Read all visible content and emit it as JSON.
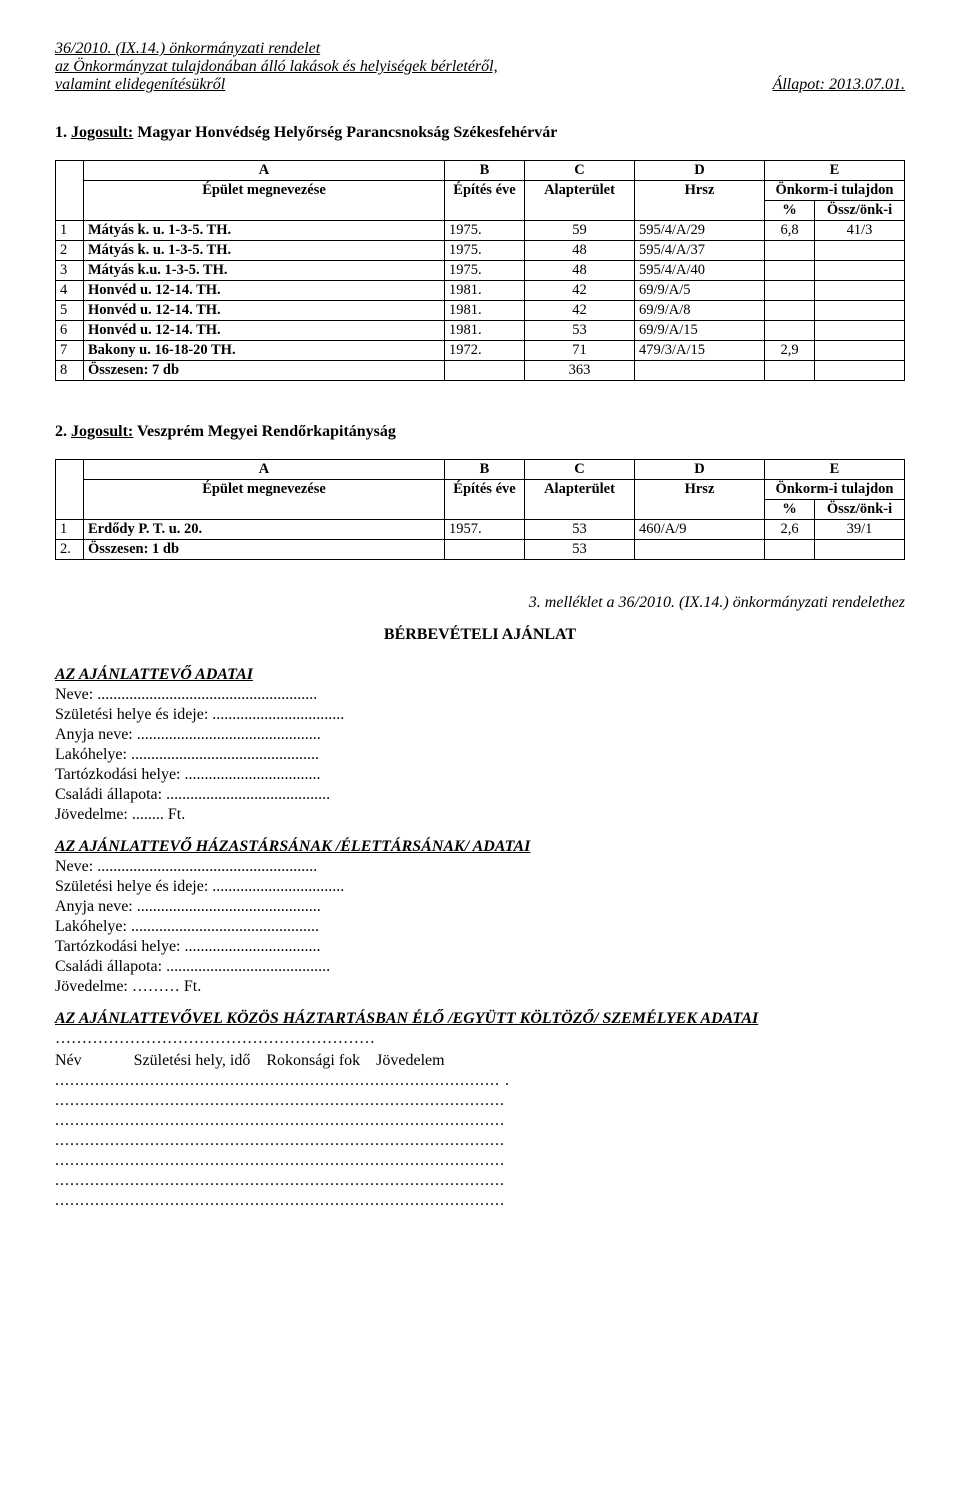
{
  "header": {
    "line1": "36/2010. (IX.14.) önkormányzati rendelet",
    "line2": "az Önkormányzat tulajdonában álló lakások és helyiségek bérletéről,",
    "line3_left": "valamint elidegenítésükről",
    "line3_right": "Állapot: 2013.07.01."
  },
  "section1": {
    "num": "1. ",
    "label_prefix": "Jogosult:",
    "label_rest": " Magyar Honvédség Helyőrség Parancsnokság Székesfehérvár",
    "columns": {
      "a": "A",
      "a2": "Épület megnevezése",
      "b": "B",
      "b2": "Építés éve",
      "c": "C",
      "c2": "Alapterület",
      "d": "D",
      "d2": "Hrsz",
      "e": "E",
      "e2": "Önkorm-i tulajdon",
      "pct": "%",
      "ossz": "Össz/önk-i"
    },
    "rows": [
      {
        "n": "1",
        "name": "Mátyás k. u. 1-3-5. TH.",
        "yr": "1975.",
        "area": "59",
        "hrsz": "595/4/A/29",
        "pct": "6,8",
        "ossz": "41/3"
      },
      {
        "n": "2",
        "name": "Mátyás k. u. 1-3-5. TH.",
        "yr": "1975.",
        "area": "48",
        "hrsz": "595/4/A/37",
        "pct": "",
        "ossz": ""
      },
      {
        "n": "3",
        "name": "Mátyás k.u. 1-3-5. TH.",
        "yr": "1975.",
        "area": "48",
        "hrsz": "595/4/A/40",
        "pct": "",
        "ossz": ""
      },
      {
        "n": "4",
        "name": "Honvéd u. 12-14. TH.",
        "yr": "1981.",
        "area": "42",
        "hrsz": "69/9/A/5",
        "pct": "",
        "ossz": ""
      },
      {
        "n": "5",
        "name": "Honvéd u. 12-14. TH.",
        "yr": "1981.",
        "area": "42",
        "hrsz": "69/9/A/8",
        "pct": "",
        "ossz": ""
      },
      {
        "n": "6",
        "name": "Honvéd u. 12-14. TH.",
        "yr": "1981.",
        "area": "53",
        "hrsz": "69/9/A/15",
        "pct": "",
        "ossz": ""
      },
      {
        "n": "7",
        "name": "Bakony u. 16-18-20 TH.",
        "yr": "1972.",
        "area": "71",
        "hrsz": "479/3/A/15",
        "pct": "2,9",
        "ossz": ""
      },
      {
        "n": "8",
        "name": "Összesen: 7 db",
        "yr": "",
        "area": "363",
        "hrsz": "",
        "pct": "",
        "ossz": ""
      }
    ]
  },
  "section2": {
    "num": "2. ",
    "label_prefix": "Jogosult:",
    "label_rest": " Veszprém Megyei Rendőrkapitányság",
    "columns": {
      "a": "A",
      "a2": "Épület megnevezése",
      "b": "B",
      "b2": "Építés éve",
      "c": "C",
      "c2": "Alapterület",
      "d": "D",
      "d2": "Hrsz",
      "e": "E",
      "e2": "Önkorm-i tulajdon",
      "pct": "%",
      "ossz": "Össz/önk-i"
    },
    "rows": [
      {
        "n": "1",
        "name": "Erdődy P. T. u. 20.",
        "yr": "1957.",
        "area": "53",
        "hrsz": "460/A/9",
        "pct": "2,6",
        "ossz": "39/1"
      },
      {
        "n": "2.",
        "name": "Összesen: 1 db",
        "yr": "",
        "area": "53",
        "hrsz": "",
        "pct": "",
        "ossz": ""
      }
    ]
  },
  "attachment_line": "3. melléklet a 36/2010. (IX.14.) önkormányzati rendelethez",
  "form_title": "BÉRBEVÉTELI AJÁNLAT",
  "applicant": {
    "heading": "AZ AJÁNLATTEVŐ ADATAI",
    "name": "Neve: .......................................................",
    "birth": "Születési helye és ideje: .................................",
    "mother": "Anyja neve: ..............................................",
    "addr": "Lakóhelye: ...............................................",
    "stay": "Tartózkodási helye: ..................................",
    "marital": "Családi állapota: .........................................",
    "income": "Jövedelme: ........ Ft."
  },
  "spouse": {
    "heading": "AZ AJÁNLATTEVŐ HÁZASTÁRSÁNAK /ÉLETTÁRSÁNAK/ ADATAI",
    "name": "Neve: .......................................................",
    "birth": "Születési helye és ideje: .................................",
    "mother": "Anyja neve: ..............................................",
    "addr": "Lakóhelye: ...............................................",
    "stay": "Tartózkodási helye: ..................................",
    "marital": "Családi állapota: .........................................",
    "income": "Jövedelme: ……… Ft."
  },
  "household": {
    "heading": "AZ AJÁNLATTEVŐVEL KÖZÖS HÁZTARTÁSBAN ÉLŐ /EGYÜTT KÖLTÖZŐ/ SZEMÉLYEK ADATAI",
    "leader": "……………………………………………………",
    "cols": "Név             Születési hely, idő    Rokonsági fok    Jövedelem",
    "dotlines": [
      "......................................................................................... .",
      "..........................................................................................",
      "..........................................................................................",
      "..........................................................................................",
      "..........................................................................................",
      "..........................................................................................",
      ".........................................................................................."
    ]
  }
}
